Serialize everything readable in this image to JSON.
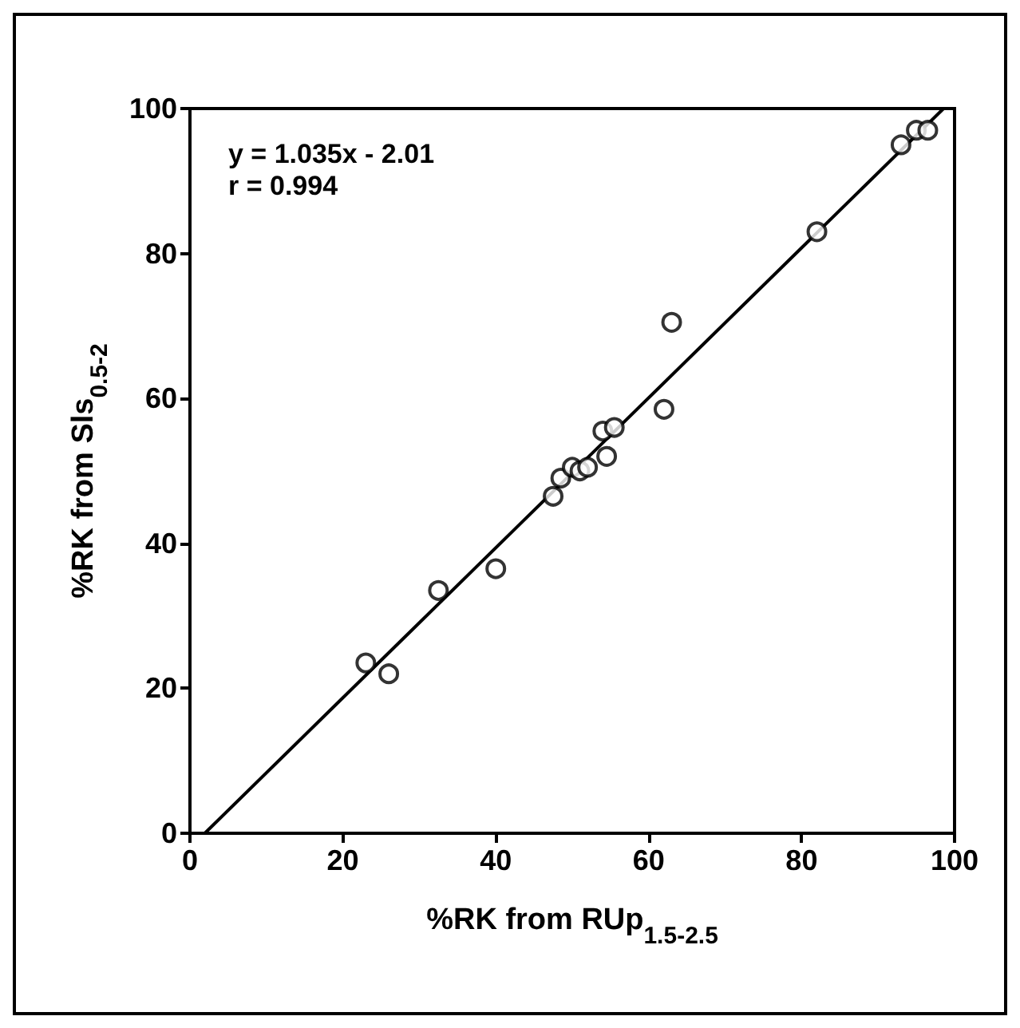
{
  "chart_data": {
    "type": "scatter",
    "xlabel": "%RK from RUp$_{1.5-2.5}$",
    "ylabel": "%RK from Sls$_{0.5-2}$",
    "annotations": [
      "y = 1.035x - 2.01",
      "r = 0.994"
    ],
    "series": [
      {
        "color": "#000000",
        "marker": "circle",
        "x": [
          23,
          26,
          32.5,
          40,
          47.5,
          48.5,
          50,
          51,
          52,
          54,
          54.5,
          55.5,
          62,
          63,
          82,
          93,
          95,
          96.5
        ],
        "values": [
          23.5,
          22,
          33.5,
          36.5,
          46.5,
          49,
          50.5,
          50,
          50.5,
          55.5,
          52,
          56,
          58.5,
          70.5,
          83,
          95,
          97,
          97
        ]
      },
      {
        "type": "line",
        "color": "#000000",
        "marker": "none",
        "x": [
          1.94,
          98.56
        ],
        "values": [
          0,
          100
        ]
      }
    ],
    "xlim": [
      0,
      100
    ],
    "ylim": [
      0,
      100
    ],
    "xticks": [
      0,
      20,
      40,
      60,
      80,
      100
    ],
    "yticks": [
      0,
      20,
      40,
      60,
      80,
      100
    ],
    "grid": false
  }
}
